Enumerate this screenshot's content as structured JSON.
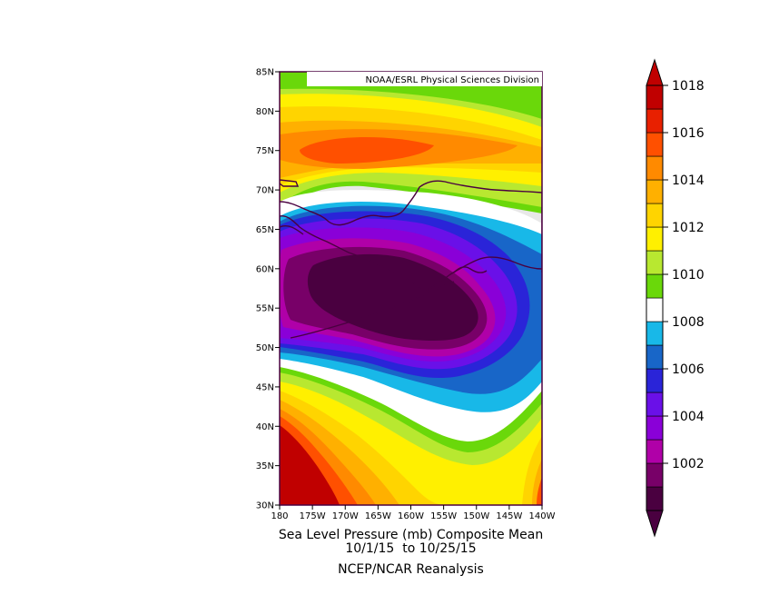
{
  "map": {
    "credit": "NOAA/ESRL Physical Sciences Division",
    "lat_ticks": [
      "85N",
      "80N",
      "75N",
      "70N",
      "65N",
      "60N",
      "55N",
      "50N",
      "45N",
      "40N",
      "35N",
      "30N"
    ],
    "lon_ticks": [
      "180",
      "175W",
      "170W",
      "165W",
      "160W",
      "155W",
      "150W",
      "145W",
      "140W"
    ],
    "extent": {
      "lon_min": -180,
      "lon_max": -140,
      "lat_min": 30,
      "lat_max": 85
    }
  },
  "caption": {
    "title": "Sea Level Pressure (mb) Composite Mean",
    "dates": "10/1/15  to 10/25/15",
    "source": "NCEP/NCAR Reanalysis"
  },
  "colorbar": {
    "labels": [
      "1018",
      "1016",
      "1014",
      "1012",
      "1010",
      "1008",
      "1006",
      "1004",
      "1002"
    ],
    "colors_low_to_high": [
      "#4a0040",
      "#780068",
      "#b000a8",
      "#8a00d8",
      "#6a10e8",
      "#2a24d8",
      "#1866c8",
      "#18b8e8",
      "#ffffff",
      "#6ad80a",
      "#b8e830",
      "#fff000",
      "#ffd400",
      "#ffb000",
      "#ff8a00",
      "#ff5000",
      "#e82000",
      "#c00000"
    ]
  }
}
